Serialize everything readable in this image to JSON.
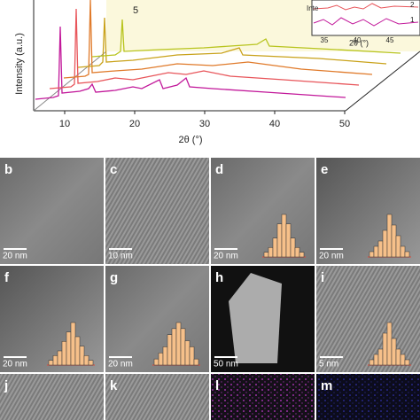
{
  "xrd": {
    "ylabel": "Intensity (a.u.)",
    "xlabel": "2θ (°)",
    "xticks": [
      "10",
      "20",
      "30",
      "40",
      "50"
    ],
    "series_label": "5",
    "inset": {
      "ylabel": "Inte",
      "xlabel": "2θ (°)",
      "xticks": [
        "35",
        "40",
        "45"
      ],
      "curve_labels": [
        "2",
        "1"
      ]
    }
  },
  "panels": [
    {
      "label": "b",
      "scale": "20 nm"
    },
    {
      "label": "c",
      "scale": "10 nm"
    },
    {
      "label": "d",
      "scale": "20 nm",
      "histogram": [
        1,
        2,
        4,
        7,
        9,
        7,
        4,
        2,
        1
      ]
    },
    {
      "label": "e",
      "scale": "20 nm",
      "histogram": [
        1,
        2,
        3,
        5,
        8,
        6,
        4,
        2,
        1
      ]
    },
    {
      "label": "f",
      "scale": "20 nm",
      "histogram": [
        1,
        2,
        3,
        5,
        7,
        9,
        6,
        4,
        2,
        1
      ]
    },
    {
      "label": "g",
      "scale": "20 nm",
      "histogram": [
        1,
        2,
        3,
        5,
        6,
        7,
        6,
        4,
        3,
        1
      ]
    },
    {
      "label": "h",
      "scale": "50 nm"
    },
    {
      "label": "i",
      "scale": "5 nm",
      "histogram": [
        1,
        2,
        3,
        6,
        8,
        5,
        3,
        2,
        1
      ]
    },
    {
      "label": "j"
    },
    {
      "label": "k"
    },
    {
      "label": "l"
    },
    {
      "label": "m"
    }
  ]
}
